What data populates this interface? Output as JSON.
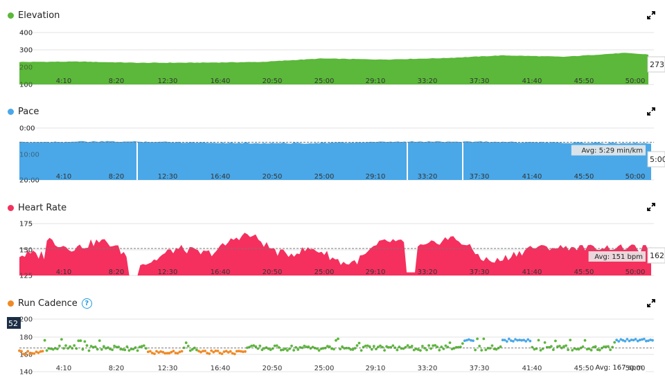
{
  "panels": [
    {
      "id": "elevation",
      "title": "Elevation",
      "color": "#5bb83a",
      "chart_data": {
        "type": "area",
        "yticks": [
          "400",
          "300",
          "200",
          "100"
        ],
        "ylim": [
          400,
          100
        ],
        "xticks": [
          "4:10",
          "8:20",
          "12:30",
          "16:40",
          "20:50",
          "25:00",
          "29:10",
          "33:20",
          "37:30",
          "41:40",
          "45:50",
          "50:00"
        ],
        "x_minutes": [
          0,
          5,
          10,
          15,
          20,
          25,
          30,
          35,
          40,
          45,
          50,
          52
        ],
        "values": [
          230,
          232,
          225,
          226,
          230,
          250,
          244,
          252,
          268,
          260,
          282,
          273
        ],
        "current_label": "273"
      }
    },
    {
      "id": "pace",
      "title": "Pace",
      "color": "#4aa8e8",
      "chart_data": {
        "type": "area",
        "yticks": [
          "0:00",
          "10:00",
          "20:00"
        ],
        "ylim": [
          0,
          20
        ],
        "xticks": [
          "4:10",
          "8:20",
          "12:30",
          "16:40",
          "20:50",
          "25:00",
          "29:10",
          "33:20",
          "37:30",
          "41:40",
          "45:50",
          "50:00"
        ],
        "avg_label": "Avg: 5:29 min/km",
        "avg_value": 5.48,
        "current_label": "5:00"
      }
    },
    {
      "id": "heart",
      "title": "Heart Rate",
      "color": "#f5305e",
      "chart_data": {
        "type": "area",
        "yticks": [
          "175",
          "150",
          "125"
        ],
        "ylim": [
          175,
          125
        ],
        "xticks": [
          "4:10",
          "8:20",
          "12:30",
          "16:40",
          "20:50",
          "25:00",
          "29:10",
          "33:20",
          "37:30",
          "41:40",
          "45:50",
          "50:00"
        ],
        "avg_label": "Avg: 151 bpm",
        "avg_value": 151,
        "current_label": "162"
      }
    },
    {
      "id": "cadence",
      "title": "Run Cadence",
      "color": "#f08a24",
      "chart_data": {
        "type": "scatter",
        "yticks": [
          "200",
          "180",
          "160",
          "140"
        ],
        "ylim": [
          200,
          140
        ],
        "xticks": [
          "4:10",
          "8:20",
          "12:30",
          "16:40",
          "20:50",
          "25:00",
          "29:10",
          "33:20",
          "37:30",
          "41:40",
          "45:50",
          "50:00"
        ],
        "avg_label": "Avg: 167 spm",
        "avg_value": 167,
        "current_label": "52"
      }
    }
  ],
  "colors": {
    "green": "#5bb83a",
    "blue": "#4aa8e8",
    "orange": "#f08a24",
    "grid": "#e3e3e3"
  }
}
